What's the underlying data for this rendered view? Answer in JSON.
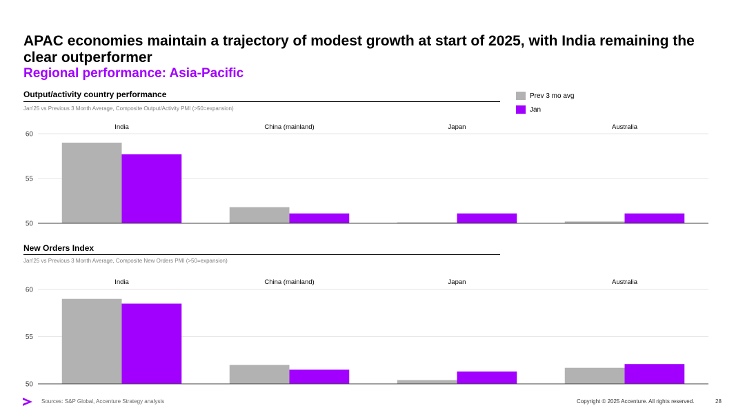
{
  "page": {
    "title": "APAC economies maintain a trajectory of modest growth at start of 2025, with India remaining the clear outperformer",
    "subtitle": "Regional performance: Asia-Pacific",
    "source": "Sources: S&P Global, Accenture Strategy analysis",
    "copyright": "Copyright © 2025 Accenture. All rights reserved.",
    "page_number": "28"
  },
  "legend": [
    {
      "label": "Prev 3 mo avg",
      "color": "#b2b2b2"
    },
    {
      "label": "Jan",
      "color": "#a100ff"
    }
  ],
  "sections": [
    {
      "title": "Output/activity country performance",
      "note": "Jan'25 vs Previous 3 Month Average, Composite Output/Activity PMI (>50=expansion)"
    },
    {
      "title": "New Orders Index",
      "note": "Jan'25 vs Previous 3 Month Average, Composite New Orders PMI (>50=expansion)"
    }
  ],
  "chart_data": [
    {
      "type": "bar",
      "categories": [
        "India",
        "China (mainland)",
        "Japan",
        "Australia"
      ],
      "series": [
        {
          "name": "Prev 3 mo avg",
          "values": [
            59.0,
            51.8,
            50.1,
            50.2
          ],
          "color": "#b2b2b2"
        },
        {
          "name": "Jan",
          "values": [
            57.7,
            51.1,
            51.1,
            51.1
          ],
          "color": "#a100ff"
        }
      ],
      "ylim": [
        50,
        60
      ],
      "yticks": [
        "50",
        "55",
        "60"
      ],
      "grid": true,
      "legend_position": "top-right"
    },
    {
      "type": "bar",
      "categories": [
        "India",
        "China (mainland)",
        "Japan",
        "Australia"
      ],
      "series": [
        {
          "name": "Prev 3 mo avg",
          "values": [
            59.0,
            52.0,
            50.4,
            51.7
          ],
          "color": "#b2b2b2"
        },
        {
          "name": "Jan",
          "values": [
            58.5,
            51.5,
            51.3,
            52.1
          ],
          "color": "#a100ff"
        }
      ],
      "ylim": [
        50,
        60
      ],
      "yticks": [
        "50",
        "55",
        "60"
      ],
      "grid": true,
      "legend_position": "top-right"
    }
  ]
}
